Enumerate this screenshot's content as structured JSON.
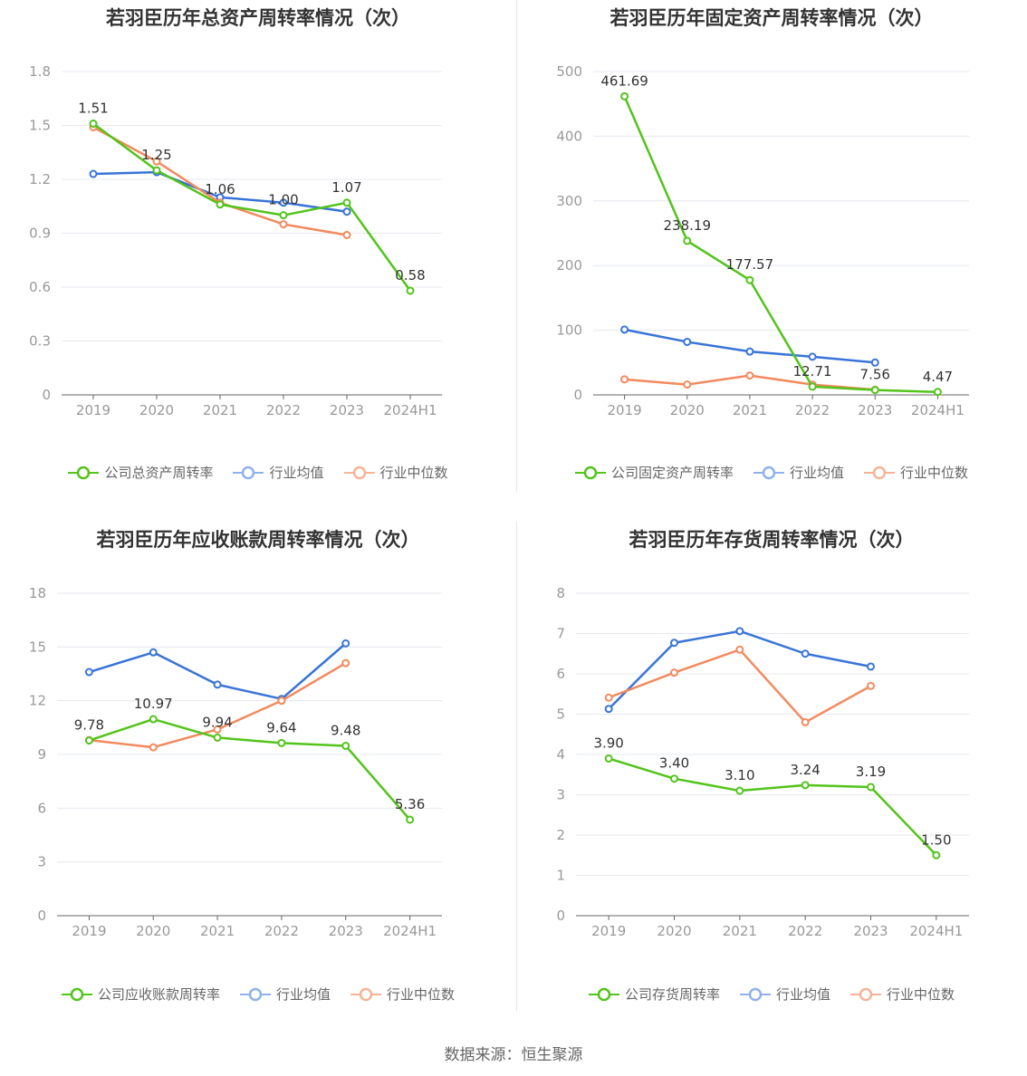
{
  "colors": {
    "company": "#52c41a",
    "average": "#3874d8",
    "median": "#f28a5e",
    "grid": "#e6e8ef",
    "axis": "#999999",
    "tick_text": "#999999",
    "label_text": "#333333"
  },
  "source": "数据来源：恒生聚源",
  "chart_data": [
    {
      "type": "line",
      "title": "若羽臣历年总资产周转率情况（次）",
      "categories": [
        "2019",
        "2020",
        "2021",
        "2022",
        "2023",
        "2024H1"
      ],
      "yticks": [
        "0",
        "0.3",
        "0.6",
        "0.9",
        "1.2",
        "1.5",
        "1.8"
      ],
      "ylim": [
        0,
        1.8
      ],
      "series": [
        {
          "name": "公司总资产周转率",
          "values": [
            1.51,
            1.25,
            1.06,
            1.0,
            1.07,
            0.58
          ],
          "labels": [
            "1.51",
            "1.25",
            "1.06",
            "1.00",
            "1.07",
            "0.58"
          ]
        },
        {
          "name": "行业均值",
          "values": [
            1.23,
            1.24,
            1.1,
            1.07,
            1.02,
            null
          ]
        },
        {
          "name": "行业中位数",
          "values": [
            1.49,
            1.3,
            1.07,
            0.95,
            0.89,
            null
          ]
        }
      ],
      "legend_position": "bottom"
    },
    {
      "type": "line",
      "title": "若羽臣历年固定资产周转率情况（次）",
      "categories": [
        "2019",
        "2020",
        "2021",
        "2022",
        "2023",
        "2024H1"
      ],
      "yticks": [
        "0",
        "100",
        "200",
        "300",
        "400",
        "500"
      ],
      "ylim": [
        0,
        500
      ],
      "series": [
        {
          "name": "公司固定资产周转率",
          "values": [
            461.69,
            238.19,
            177.57,
            12.71,
            7.56,
            4.47
          ],
          "labels": [
            "461.69",
            "238.19",
            "177.57",
            "12.71",
            "7.56",
            "4.47"
          ]
        },
        {
          "name": "行业均值",
          "values": [
            101,
            82,
            67,
            59,
            50,
            null
          ]
        },
        {
          "name": "行业中位数",
          "values": [
            24,
            16,
            30,
            16,
            8,
            null
          ]
        }
      ],
      "legend_position": "bottom"
    },
    {
      "type": "line",
      "title": "若羽臣历年应收账款周转率情况（次）",
      "categories": [
        "2019",
        "2020",
        "2021",
        "2022",
        "2023",
        "2024H1"
      ],
      "yticks": [
        "0",
        "3",
        "6",
        "9",
        "12",
        "15",
        "18"
      ],
      "ylim": [
        0,
        18
      ],
      "series": [
        {
          "name": "公司应收账款周转率",
          "values": [
            9.78,
            10.97,
            9.94,
            9.64,
            9.48,
            5.36
          ],
          "labels": [
            "9.78",
            "10.97",
            "9.94",
            "9.64",
            "9.48",
            "5.36"
          ]
        },
        {
          "name": "行业均值",
          "values": [
            13.6,
            14.7,
            12.9,
            12.1,
            15.2,
            null
          ]
        },
        {
          "name": "行业中位数",
          "values": [
            9.8,
            9.4,
            10.4,
            12.0,
            14.1,
            null
          ]
        }
      ],
      "legend_position": "bottom"
    },
    {
      "type": "line",
      "title": "若羽臣历年存货周转率情况（次）",
      "categories": [
        "2019",
        "2020",
        "2021",
        "2022",
        "2023",
        "2024H1"
      ],
      "yticks": [
        "0",
        "1",
        "2",
        "3",
        "4",
        "5",
        "6",
        "7",
        "8"
      ],
      "ylim": [
        0,
        8
      ],
      "series": [
        {
          "name": "公司存货周转率",
          "values": [
            3.9,
            3.4,
            3.1,
            3.24,
            3.19,
            1.5
          ],
          "labels": [
            "3.90",
            "3.40",
            "3.10",
            "3.24",
            "3.19",
            "1.50"
          ]
        },
        {
          "name": "行业均值",
          "values": [
            5.13,
            6.77,
            7.06,
            6.5,
            6.18,
            null
          ]
        },
        {
          "name": "行业中位数",
          "values": [
            5.41,
            6.03,
            6.6,
            4.8,
            5.7,
            null
          ]
        }
      ],
      "legend_position": "bottom"
    }
  ]
}
